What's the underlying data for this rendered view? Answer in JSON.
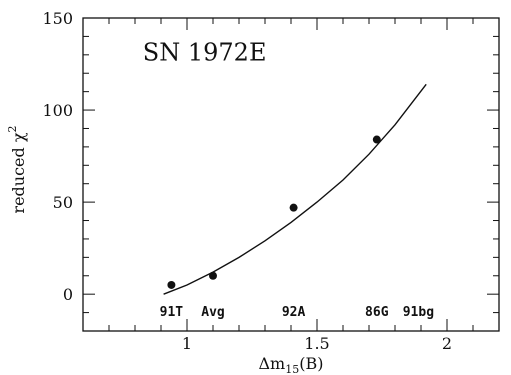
{
  "chart_data": {
    "type": "scatter",
    "title": "",
    "annotation": "SN 1972E",
    "xlabel": "Δm",
    "xlabel_sub": "15",
    "xlabel_suffix": "(B)",
    "ylabel": "reduced χ",
    "ylabel_sup": "2",
    "xlim": [
      0.6,
      2.2
    ],
    "ylim": [
      -20,
      150
    ],
    "xticks": [
      1,
      1.5,
      2
    ],
    "xtick_labels": [
      "1",
      "1.5",
      "2"
    ],
    "yticks": [
      0,
      50,
      100,
      150
    ],
    "ytick_labels": [
      "0",
      "50",
      "100",
      "150"
    ],
    "grid": false,
    "series": [
      {
        "points": [
          {
            "x": 0.94,
            "y": 5,
            "label": "91T"
          },
          {
            "x": 1.1,
            "y": 10,
            "label": "Avg"
          },
          {
            "x": 1.41,
            "y": 47,
            "label": "92A"
          },
          {
            "x": 1.73,
            "y": 84,
            "label": "86G"
          }
        ]
      }
    ],
    "extra_labels": [
      {
        "x": 1.89,
        "label": "91bg"
      }
    ],
    "fit_curve": {
      "x": [
        0.91,
        1.0,
        1.1,
        1.2,
        1.3,
        1.4,
        1.5,
        1.6,
        1.7,
        1.8,
        1.92
      ],
      "y": [
        0,
        5,
        12,
        20,
        29,
        39,
        50,
        62,
        76,
        92,
        114
      ]
    }
  }
}
